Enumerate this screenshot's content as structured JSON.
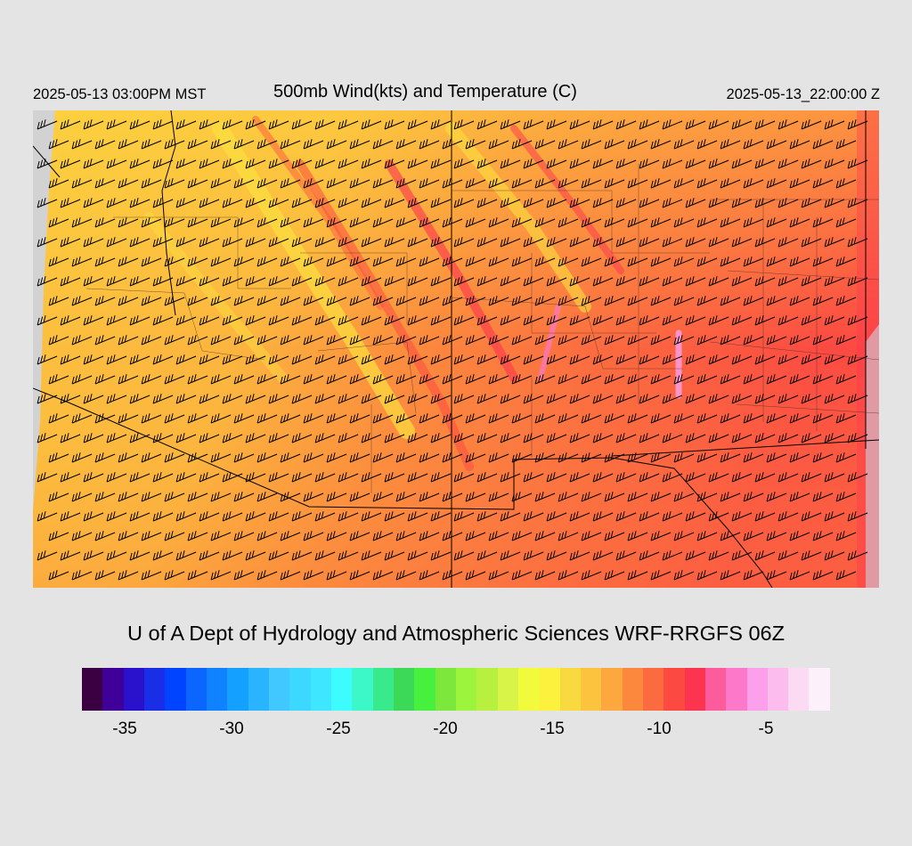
{
  "header": {
    "valid_local": "2025-05-13 03:00PM MST",
    "title": "500mb Wind(kts) and Temperature (C)",
    "valid_utc": "2025-05-13_22:00:00 Z"
  },
  "credit": "U of A Dept of Hydrology and Atmospheric Sciences WRF-RRGFS 06Z",
  "colorbar": {
    "colors": [
      "#3a0042",
      "#3e0099",
      "#2a12cc",
      "#1a2ee8",
      "#0044ff",
      "#0a66ff",
      "#0e82ff",
      "#14a0ff",
      "#2ab4ff",
      "#40c8ff",
      "#3cd8ff",
      "#3ee6ff",
      "#3cfcff",
      "#3cf8c8",
      "#38ea8c",
      "#3cd858",
      "#48f03e",
      "#7ce83c",
      "#9cf43c",
      "#b8f040",
      "#d8f448",
      "#f2fa3c",
      "#fcf23e",
      "#f8da40",
      "#fcc43e",
      "#fca83e",
      "#fc883e",
      "#fc6a40",
      "#fc4a42",
      "#fc3450",
      "#fc5c9c",
      "#fc78c8",
      "#fca0ec",
      "#fcbcee",
      "#fcdaf4",
      "#fcf0fa"
    ],
    "tick_labels": [
      "-35",
      "-30",
      "-25",
      "-20",
      "-15",
      "-10",
      "-5"
    ],
    "tick_values": [
      -35,
      -30,
      -25,
      -20,
      -15,
      -10,
      -5
    ],
    "range": [
      -37,
      -2
    ]
  }
}
